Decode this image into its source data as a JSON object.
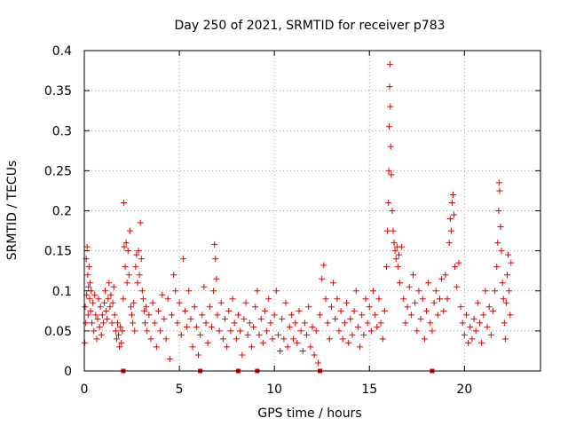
{
  "chart_data": {
    "type": "scatter",
    "title": "Day 250 of 2021, SRMTID for receiver p783",
    "xlabel": "GPS time / hours",
    "ylabel": "SRMTID / TECUs",
    "xlim": [
      0,
      24
    ],
    "ylim": [
      0,
      0.4
    ],
    "xticks": [
      0,
      5,
      10,
      15,
      20
    ],
    "xtick_labels": [
      "0",
      "5",
      "10",
      "15",
      "20"
    ],
    "yticks": [
      0,
      0.05,
      0.1,
      0.15,
      0.2,
      0.25,
      0.3,
      0.35,
      0.4
    ],
    "ytick_labels": [
      "0",
      "0.05",
      "0.1",
      "0.15",
      "0.2",
      "0.25",
      "0.3",
      "0.35",
      "0.4"
    ],
    "grid": true,
    "marker": "plus",
    "color": "#e00000",
    "baseline_markers_x": [
      2.05,
      6.1,
      8.1,
      9.1,
      12.4,
      18.3
    ],
    "series": [
      {
        "name": "SRMTID",
        "points": [
          [
            0.02,
            0.035
          ],
          [
            0.05,
            0.08
          ],
          [
            0.08,
            0.06
          ],
          [
            0.1,
            0.14
          ],
          [
            0.12,
            0.095
          ],
          [
            0.15,
            0.155
          ],
          [
            0.18,
            0.12
          ],
          [
            0.2,
            0.07
          ],
          [
            0.22,
            0.105
          ],
          [
            0.25,
            0.13
          ],
          [
            0.28,
            0.09
          ],
          [
            0.3,
            0.11
          ],
          [
            0.33,
            0.075
          ],
          [
            0.36,
            0.1
          ],
          [
            0.4,
            0.06
          ],
          [
            0.45,
            0.085
          ],
          [
            0.5,
            0.05
          ],
          [
            0.55,
            0.095
          ],
          [
            0.6,
            0.07
          ],
          [
            0.65,
            0.04
          ],
          [
            0.7,
            0.065
          ],
          [
            0.75,
            0.09
          ],
          [
            0.8,
            0.055
          ],
          [
            0.85,
            0.08
          ],
          [
            0.9,
            0.045
          ],
          [
            0.95,
            0.07
          ],
          [
            1.0,
            0.06
          ],
          [
            1.05,
            0.085
          ],
          [
            1.1,
            0.1
          ],
          [
            1.15,
            0.075
          ],
          [
            1.2,
            0.065
          ],
          [
            1.25,
            0.09
          ],
          [
            1.3,
            0.11
          ],
          [
            1.35,
            0.08
          ],
          [
            1.4,
            0.095
          ],
          [
            1.45,
            0.06
          ],
          [
            1.5,
            0.085
          ],
          [
            1.55,
            0.105
          ],
          [
            1.6,
            0.07
          ],
          [
            1.65,
            0.05
          ],
          [
            1.7,
            0.04
          ],
          [
            1.75,
            0.06
          ],
          [
            1.8,
            0.045
          ],
          [
            1.85,
            0.03
          ],
          [
            1.9,
            0.055
          ],
          [
            1.95,
            0.035
          ],
          [
            2.0,
            0.05
          ],
          [
            2.05,
            0.09
          ],
          [
            2.08,
            0.21
          ],
          [
            2.1,
            0.155
          ],
          [
            2.15,
            0.13
          ],
          [
            2.2,
            0.16
          ],
          [
            2.25,
            0.11
          ],
          [
            2.3,
            0.15
          ],
          [
            2.35,
            0.12
          ],
          [
            2.4,
            0.175
          ],
          [
            2.45,
            0.08
          ],
          [
            2.5,
            0.07
          ],
          [
            2.55,
            0.06
          ],
          [
            2.6,
            0.085
          ],
          [
            2.65,
            0.05
          ],
          [
            2.7,
            0.13
          ],
          [
            2.75,
            0.145
          ],
          [
            2.8,
            0.11
          ],
          [
            2.85,
            0.15
          ],
          [
            2.9,
            0.12
          ],
          [
            2.95,
            0.185
          ],
          [
            3.0,
            0.14
          ],
          [
            3.05,
            0.1
          ],
          [
            3.1,
            0.09
          ],
          [
            3.15,
            0.075
          ],
          [
            3.2,
            0.06
          ],
          [
            3.25,
            0.08
          ],
          [
            3.3,
            0.05
          ],
          [
            3.4,
            0.07
          ],
          [
            3.5,
            0.04
          ],
          [
            3.6,
            0.085
          ],
          [
            3.7,
            0.06
          ],
          [
            3.8,
            0.03
          ],
          [
            3.9,
            0.075
          ],
          [
            4.0,
            0.05
          ],
          [
            4.1,
            0.095
          ],
          [
            4.2,
            0.065
          ],
          [
            4.3,
            0.04
          ],
          [
            4.4,
            0.09
          ],
          [
            4.5,
            0.015
          ],
          [
            4.6,
            0.07
          ],
          [
            4.7,
            0.12
          ],
          [
            4.8,
            0.1
          ],
          [
            4.9,
            0.06
          ],
          [
            5.0,
            0.085
          ],
          [
            5.1,
            0.045
          ],
          [
            5.2,
            0.14
          ],
          [
            5.3,
            0.075
          ],
          [
            5.4,
            0.055
          ],
          [
            5.5,
            0.1
          ],
          [
            5.6,
            0.065
          ],
          [
            5.7,
            0.03
          ],
          [
            5.8,
            0.08
          ],
          [
            5.9,
            0.055
          ],
          [
            6.0,
            0.02
          ],
          [
            6.1,
            0.045
          ],
          [
            6.2,
            0.07
          ],
          [
            6.3,
            0.105
          ],
          [
            6.4,
            0.06
          ],
          [
            6.5,
            0.035
          ],
          [
            6.6,
            0.08
          ],
          [
            6.7,
            0.055
          ],
          [
            6.8,
            0.1
          ],
          [
            6.85,
            0.158
          ],
          [
            6.9,
            0.14
          ],
          [
            6.95,
            0.115
          ],
          [
            7.0,
            0.07
          ],
          [
            7.1,
            0.05
          ],
          [
            7.2,
            0.085
          ],
          [
            7.3,
            0.04
          ],
          [
            7.4,
            0.065
          ],
          [
            7.5,
            0.03
          ],
          [
            7.6,
            0.075
          ],
          [
            7.7,
            0.05
          ],
          [
            7.8,
            0.09
          ],
          [
            7.9,
            0.06
          ],
          [
            8.0,
            0.04
          ],
          [
            8.1,
            0.07
          ],
          [
            8.2,
            0.05
          ],
          [
            8.3,
            0.02
          ],
          [
            8.4,
            0.065
          ],
          [
            8.5,
            0.085
          ],
          [
            8.6,
            0.045
          ],
          [
            8.7,
            0.06
          ],
          [
            8.8,
            0.03
          ],
          [
            8.9,
            0.055
          ],
          [
            9.0,
            0.08
          ],
          [
            9.1,
            0.1
          ],
          [
            9.2,
            0.045
          ],
          [
            9.3,
            0.065
          ],
          [
            9.4,
            0.035
          ],
          [
            9.5,
            0.075
          ],
          [
            9.6,
            0.05
          ],
          [
            9.7,
            0.09
          ],
          [
            9.8,
            0.06
          ],
          [
            9.9,
            0.04
          ],
          [
            10.0,
            0.07
          ],
          [
            10.1,
            0.1
          ],
          [
            10.2,
            0.045
          ],
          [
            10.3,
            0.025
          ],
          [
            10.4,
            0.065
          ],
          [
            10.5,
            0.04
          ],
          [
            10.6,
            0.085
          ],
          [
            10.7,
            0.03
          ],
          [
            10.8,
            0.055
          ],
          [
            10.9,
            0.07
          ],
          [
            11.0,
            0.04
          ],
          [
            11.1,
            0.06
          ],
          [
            11.2,
            0.035
          ],
          [
            11.3,
            0.075
          ],
          [
            11.4,
            0.05
          ],
          [
            11.5,
            0.025
          ],
          [
            11.6,
            0.06
          ],
          [
            11.7,
            0.045
          ],
          [
            11.8,
            0.08
          ],
          [
            11.9,
            0.03
          ],
          [
            12.0,
            0.055
          ],
          [
            12.1,
            0.02
          ],
          [
            12.2,
            0.05
          ],
          [
            12.3,
            0.01
          ],
          [
            12.4,
            0.07
          ],
          [
            12.5,
            0.115
          ],
          [
            12.6,
            0.132
          ],
          [
            12.7,
            0.09
          ],
          [
            12.8,
            0.06
          ],
          [
            12.9,
            0.04
          ],
          [
            13.0,
            0.08
          ],
          [
            13.1,
            0.11
          ],
          [
            13.2,
            0.065
          ],
          [
            13.3,
            0.09
          ],
          [
            13.4,
            0.05
          ],
          [
            13.5,
            0.075
          ],
          [
            13.6,
            0.04
          ],
          [
            13.7,
            0.06
          ],
          [
            13.8,
            0.085
          ],
          [
            13.9,
            0.035
          ],
          [
            14.0,
            0.065
          ],
          [
            14.1,
            0.045
          ],
          [
            14.2,
            0.075
          ],
          [
            14.3,
            0.1
          ],
          [
            14.4,
            0.055
          ],
          [
            14.5,
            0.03
          ],
          [
            14.6,
            0.07
          ],
          [
            14.7,
            0.045
          ],
          [
            14.8,
            0.09
          ],
          [
            14.9,
            0.06
          ],
          [
            15.0,
            0.08
          ],
          [
            15.1,
            0.05
          ],
          [
            15.2,
            0.1
          ],
          [
            15.3,
            0.07
          ],
          [
            15.4,
            0.055
          ],
          [
            15.5,
            0.09
          ],
          [
            15.6,
            0.06
          ],
          [
            15.7,
            0.04
          ],
          [
            15.8,
            0.075
          ],
          [
            15.9,
            0.13
          ],
          [
            15.95,
            0.175
          ],
          [
            16.0,
            0.21
          ],
          [
            16.02,
            0.25
          ],
          [
            16.04,
            0.305
          ],
          [
            16.06,
            0.355
          ],
          [
            16.08,
            0.383
          ],
          [
            16.1,
            0.33
          ],
          [
            16.12,
            0.28
          ],
          [
            16.15,
            0.245
          ],
          [
            16.2,
            0.2
          ],
          [
            16.25,
            0.175
          ],
          [
            16.3,
            0.16
          ],
          [
            16.35,
            0.15
          ],
          [
            16.4,
            0.14
          ],
          [
            16.45,
            0.155
          ],
          [
            16.5,
            0.13
          ],
          [
            16.55,
            0.145
          ],
          [
            16.6,
            0.11
          ],
          [
            16.7,
            0.155
          ],
          [
            16.8,
            0.09
          ],
          [
            16.9,
            0.06
          ],
          [
            17.0,
            0.08
          ],
          [
            17.1,
            0.105
          ],
          [
            17.2,
            0.07
          ],
          [
            17.3,
            0.12
          ],
          [
            17.4,
            0.085
          ],
          [
            17.5,
            0.05
          ],
          [
            17.6,
            0.1
          ],
          [
            17.7,
            0.065
          ],
          [
            17.8,
            0.09
          ],
          [
            17.9,
            0.04
          ],
          [
            18.0,
            0.075
          ],
          [
            18.1,
            0.11
          ],
          [
            18.2,
            0.06
          ],
          [
            18.3,
            0.05
          ],
          [
            18.4,
            0.085
          ],
          [
            18.5,
            0.1
          ],
          [
            18.6,
            0.07
          ],
          [
            18.7,
            0.09
          ],
          [
            18.8,
            0.115
          ],
          [
            18.9,
            0.075
          ],
          [
            19.0,
            0.12
          ],
          [
            19.1,
            0.09
          ],
          [
            19.2,
            0.16
          ],
          [
            19.25,
            0.19
          ],
          [
            19.3,
            0.175
          ],
          [
            19.35,
            0.21
          ],
          [
            19.4,
            0.22
          ],
          [
            19.45,
            0.195
          ],
          [
            19.5,
            0.13
          ],
          [
            19.6,
            0.105
          ],
          [
            19.7,
            0.135
          ],
          [
            19.8,
            0.08
          ],
          [
            19.9,
            0.06
          ],
          [
            20.0,
            0.045
          ],
          [
            20.1,
            0.07
          ],
          [
            20.2,
            0.035
          ],
          [
            20.3,
            0.055
          ],
          [
            20.4,
            0.04
          ],
          [
            20.5,
            0.065
          ],
          [
            20.6,
            0.05
          ],
          [
            20.7,
            0.085
          ],
          [
            20.8,
            0.06
          ],
          [
            20.9,
            0.035
          ],
          [
            21.0,
            0.07
          ],
          [
            21.1,
            0.1
          ],
          [
            21.2,
            0.055
          ],
          [
            21.3,
            0.08
          ],
          [
            21.4,
            0.045
          ],
          [
            21.5,
            0.075
          ],
          [
            21.6,
            0.1
          ],
          [
            21.7,
            0.13
          ],
          [
            21.75,
            0.16
          ],
          [
            21.8,
            0.2
          ],
          [
            21.82,
            0.235
          ],
          [
            21.85,
            0.225
          ],
          [
            21.9,
            0.18
          ],
          [
            21.95,
            0.15
          ],
          [
            22.0,
            0.11
          ],
          [
            22.05,
            0.09
          ],
          [
            22.1,
            0.06
          ],
          [
            22.15,
            0.04
          ],
          [
            22.2,
            0.085
          ],
          [
            22.25,
            0.12
          ],
          [
            22.3,
            0.145
          ],
          [
            22.35,
            0.1
          ],
          [
            22.4,
            0.07
          ],
          [
            22.45,
            0.135
          ]
        ]
      }
    ]
  }
}
